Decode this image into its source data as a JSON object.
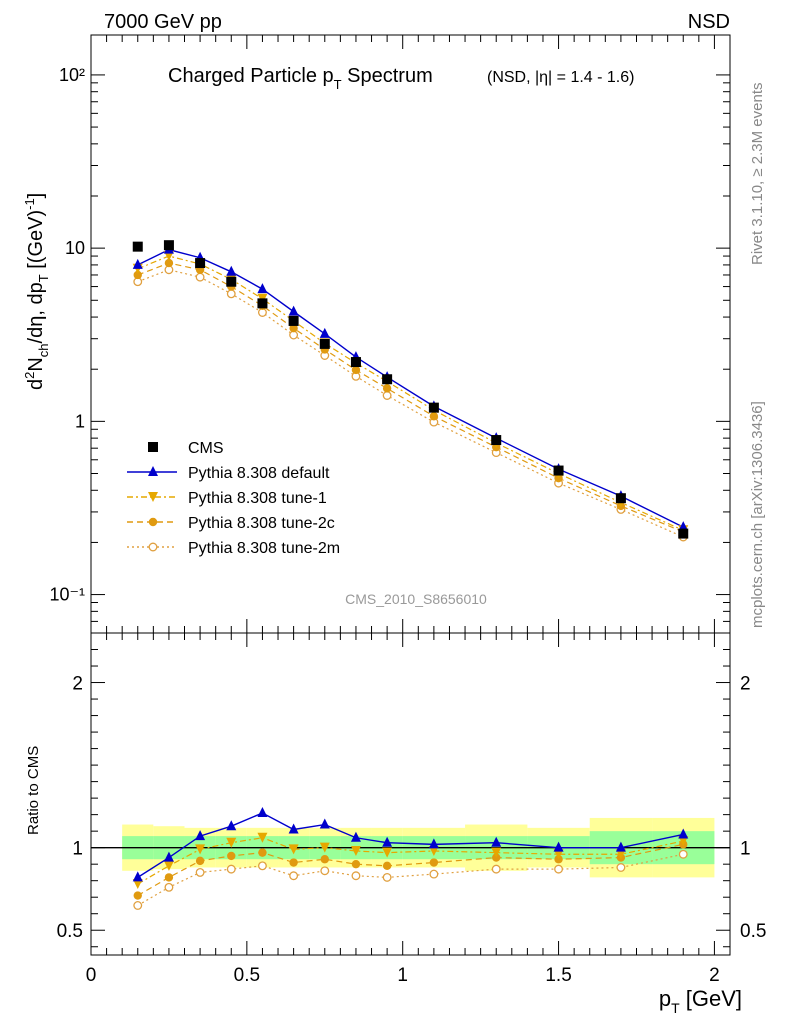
{
  "header": {
    "energy_label": "7000 GeV pp",
    "process_label": "NSD",
    "side_label_top": "Rivet 3.1.10, ≥ 2.3M events",
    "side_label_bottom": "mcplots.cern.ch [arXiv:1306.3436]",
    "analysis_id": "CMS_2010_S8656010"
  },
  "colors": {
    "cms": "#000000",
    "default": "#0000cc",
    "tune1": "#e6a800",
    "tune2c": "#e09a10",
    "tune2m": "#e0a040",
    "band_inner": "#99ff99",
    "band_outer": "#ffff99"
  },
  "chart_data": [
    {
      "type": "line",
      "title_main": "Charged Particle p",
      "title_sub": "T",
      "title_tail": " Spectrum",
      "title_extra": "(NSD, |η| = 1.4 - 1.6)",
      "ylabel": "d²N_ch/dη, dp_T [(GeV)⁻¹]",
      "yscale": "log",
      "xlim": [
        0,
        2.05
      ],
      "ylim": [
        0.06,
        170
      ],
      "ytick_labels": [
        "10⁻¹",
        "1",
        "10",
        "10²"
      ],
      "x": [
        0.15,
        0.25,
        0.35,
        0.45,
        0.55,
        0.65,
        0.75,
        0.85,
        0.95,
        1.1,
        1.3,
        1.5,
        1.7,
        1.9
      ],
      "series": [
        {
          "name": "CMS",
          "key": "cms",
          "marker": "square",
          "values": [
            10.2,
            10.4,
            8.2,
            6.4,
            4.8,
            3.8,
            2.8,
            2.2,
            1.75,
            1.2,
            0.78,
            0.52,
            0.36,
            0.225
          ]
        },
        {
          "name": "Pythia 8.308 default",
          "key": "default",
          "marker": "triangle-up",
          "line": "solid",
          "values": [
            8.0,
            9.8,
            8.8,
            7.3,
            5.8,
            4.3,
            3.2,
            2.35,
            1.8,
            1.22,
            0.8,
            0.53,
            0.37,
            0.245
          ]
        },
        {
          "name": "Pythia 8.308 tune-1",
          "key": "tune1",
          "marker": "triangle-down",
          "line": "dashdot",
          "values": [
            7.6,
            9.0,
            8.1,
            6.6,
            5.1,
            3.8,
            2.82,
            2.17,
            1.7,
            1.16,
            0.75,
            0.5,
            0.34,
            0.235
          ]
        },
        {
          "name": "Pythia 8.308 tune-2c",
          "key": "tune2c",
          "marker": "circle",
          "line": "dashed",
          "values": [
            7.0,
            8.2,
            7.5,
            6.0,
            4.65,
            3.45,
            2.6,
            1.98,
            1.55,
            1.07,
            0.71,
            0.47,
            0.325,
            0.23
          ]
        },
        {
          "name": "Pythia 8.308 tune-2m",
          "key": "tune2m",
          "marker": "circle-open",
          "line": "dotted",
          "values": [
            6.4,
            7.5,
            6.8,
            5.45,
            4.25,
            3.15,
            2.4,
            1.82,
            1.41,
            0.99,
            0.66,
            0.44,
            0.31,
            0.215
          ]
        }
      ]
    },
    {
      "type": "line",
      "ylabel": "Ratio to CMS",
      "xlabel": "p_T [GeV]",
      "xlim": [
        0,
        2.05
      ],
      "ylim": [
        0.35,
        2.3
      ],
      "yticks": [
        0.5,
        1,
        2
      ],
      "ytick_labels": [
        "0.5",
        "1",
        "2"
      ],
      "xticks": [
        0,
        0.5,
        1,
        1.5,
        2
      ],
      "xtick_labels": [
        "0",
        "0.5",
        "1",
        "1.5",
        "2"
      ],
      "x": [
        0.15,
        0.25,
        0.35,
        0.45,
        0.55,
        0.65,
        0.75,
        0.85,
        0.95,
        1.1,
        1.3,
        1.5,
        1.7,
        1.9
      ],
      "bands": {
        "bin_edges": [
          0.1,
          0.2,
          0.3,
          0.4,
          0.5,
          0.6,
          0.7,
          0.8,
          0.9,
          1.0,
          1.2,
          1.4,
          1.6,
          1.8,
          2.0
        ],
        "inner": [
          0.07,
          0.07,
          0.07,
          0.07,
          0.07,
          0.07,
          0.07,
          0.07,
          0.07,
          0.07,
          0.07,
          0.07,
          0.1,
          0.1
        ],
        "outer": [
          0.14,
          0.13,
          0.12,
          0.12,
          0.12,
          0.12,
          0.12,
          0.12,
          0.12,
          0.12,
          0.14,
          0.12,
          0.18,
          0.18
        ]
      },
      "series": [
        {
          "name": "Pythia 8.308 default",
          "key": "default",
          "values": [
            0.82,
            0.94,
            1.07,
            1.13,
            1.21,
            1.11,
            1.14,
            1.06,
            1.03,
            1.02,
            1.03,
            1.0,
            1.0,
            1.08
          ]
        },
        {
          "name": "Pythia 8.308 tune-1",
          "key": "tune1",
          "values": [
            0.78,
            0.89,
            0.99,
            1.03,
            1.06,
            0.99,
            1.0,
            0.98,
            0.97,
            0.98,
            0.97,
            0.96,
            0.96,
            1.04
          ]
        },
        {
          "name": "Pythia 8.308 tune-2c",
          "key": "tune2c",
          "values": [
            0.71,
            0.82,
            0.92,
            0.95,
            0.97,
            0.91,
            0.93,
            0.9,
            0.89,
            0.91,
            0.94,
            0.93,
            0.94,
            1.02
          ]
        },
        {
          "name": "Pythia 8.308 tune-2m",
          "key": "tune2m",
          "values": [
            0.65,
            0.76,
            0.85,
            0.87,
            0.89,
            0.83,
            0.86,
            0.83,
            0.82,
            0.84,
            0.87,
            0.87,
            0.88,
            0.96
          ]
        }
      ]
    }
  ]
}
